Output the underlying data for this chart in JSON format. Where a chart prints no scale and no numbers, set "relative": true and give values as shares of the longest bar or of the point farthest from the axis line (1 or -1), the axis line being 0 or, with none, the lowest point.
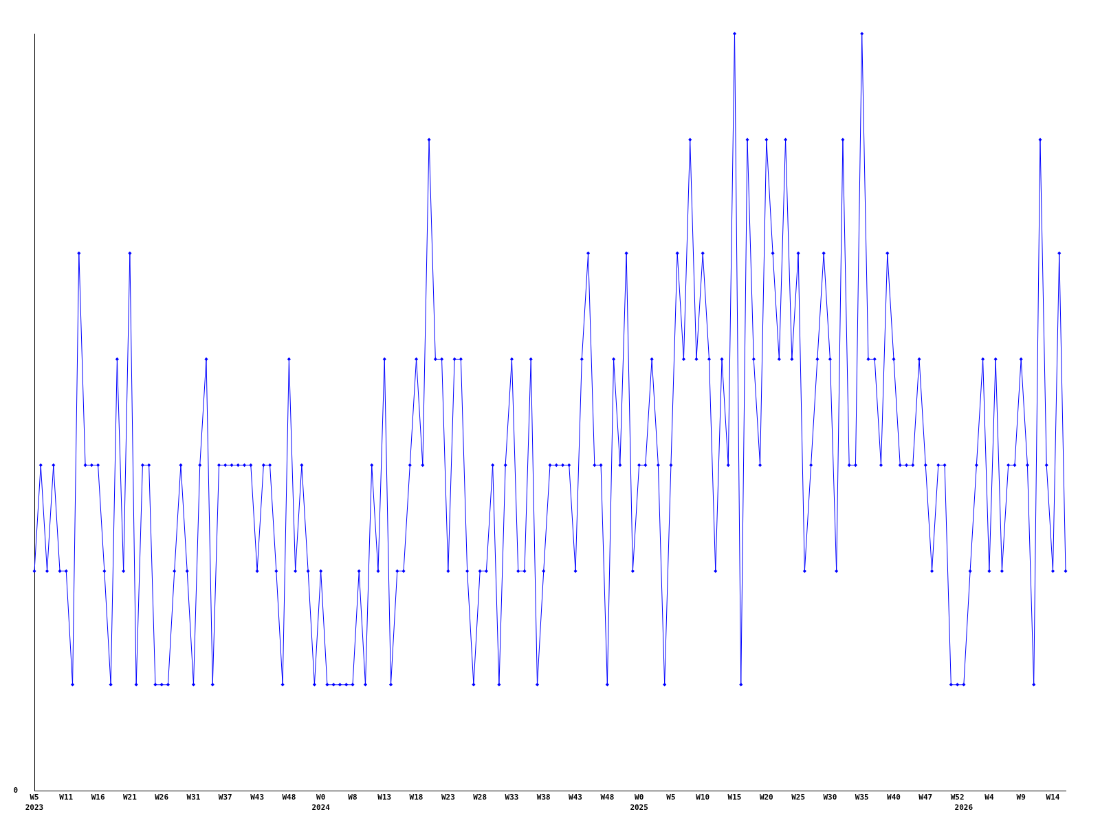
{
  "chart_data": {
    "type": "line",
    "relative": true,
    "marker": "diamond",
    "line_style": "solid",
    "color": "#0000ff",
    "categories": [
      "W5\n2023",
      null,
      null,
      null,
      null,
      "W11",
      null,
      null,
      null,
      null,
      "W16",
      null,
      null,
      null,
      null,
      "W21",
      null,
      null,
      null,
      null,
      "W26",
      null,
      null,
      null,
      null,
      "W31",
      null,
      null,
      null,
      null,
      "W37",
      null,
      null,
      null,
      null,
      "W43",
      null,
      null,
      null,
      null,
      "W48",
      null,
      null,
      null,
      null,
      "W0\n2024",
      null,
      null,
      null,
      null,
      "W8",
      null,
      null,
      null,
      null,
      "W13",
      null,
      null,
      null,
      null,
      "W18",
      null,
      null,
      null,
      null,
      "W23",
      null,
      null,
      null,
      null,
      "W28",
      null,
      null,
      null,
      null,
      "W33",
      null,
      null,
      null,
      null,
      "W38",
      null,
      null,
      null,
      null,
      "W43",
      null,
      null,
      null,
      null,
      "W48",
      null,
      null,
      null,
      null,
      "W0\n2025",
      null,
      null,
      null,
      null,
      "W5",
      null,
      null,
      null,
      null,
      "W10",
      null,
      null,
      null,
      null,
      "W15",
      null,
      null,
      null,
      null,
      "W20",
      null,
      null,
      null,
      null,
      "W25",
      null,
      null,
      null,
      null,
      "W30",
      null,
      null,
      null,
      null,
      "W35",
      null,
      null,
      null,
      null,
      "W40",
      null,
      null,
      null,
      null,
      "W47",
      null,
      null,
      null,
      null,
      "W52",
      "\n2026",
      null,
      null,
      null,
      "W4",
      null,
      null,
      null,
      null,
      "W9",
      null,
      null,
      null,
      null,
      "W14",
      null,
      null
    ],
    "values": [
      0.29,
      0.43,
      0.29,
      0.43,
      0.29,
      0.29,
      0.14,
      0.71,
      0.43,
      0.43,
      0.43,
      0.29,
      0.14,
      0.57,
      0.29,
      0.71,
      0.14,
      0.43,
      0.43,
      0.14,
      0.14,
      0.14,
      0.29,
      0.43,
      0.29,
      0.14,
      0.43,
      0.57,
      0.14,
      0.43,
      0.43,
      0.43,
      0.43,
      0.43,
      0.43,
      0.29,
      0.43,
      0.43,
      0.29,
      0.14,
      0.57,
      0.29,
      0.43,
      0.29,
      0.14,
      0.29,
      0.14,
      0.14,
      0.14,
      0.14,
      0.14,
      0.29,
      0.14,
      0.43,
      0.29,
      0.57,
      0.14,
      0.29,
      0.29,
      0.43,
      0.57,
      0.43,
      0.86,
      0.57,
      0.57,
      0.29,
      0.57,
      0.57,
      0.29,
      0.14,
      0.29,
      0.29,
      0.43,
      0.14,
      0.43,
      0.57,
      0.29,
      0.29,
      0.57,
      0.14,
      0.29,
      0.43,
      0.43,
      0.43,
      0.43,
      0.29,
      0.57,
      0.71,
      0.43,
      0.43,
      0.14,
      0.57,
      0.43,
      0.71,
      0.29,
      0.43,
      0.43,
      0.57,
      0.43,
      0.14,
      0.43,
      0.71,
      0.57,
      0.86,
      0.57,
      0.71,
      0.57,
      0.29,
      0.57,
      0.43,
      1,
      0.14,
      0.86,
      0.57,
      0.43,
      0.86,
      0.71,
      0.57,
      0.86,
      0.57,
      0.71,
      0.29,
      0.43,
      0.57,
      0.71,
      0.57,
      0.29,
      0.86,
      0.43,
      0.43,
      1,
      0.57,
      0.57,
      0.43,
      0.71,
      0.57,
      0.43,
      0.43,
      0.43,
      0.57,
      0.43,
      0.29,
      0.43,
      0.43,
      0.14,
      0.14,
      0.14,
      0.29,
      0.43,
      0.57,
      0.29,
      0.57,
      0.29,
      0.43,
      0.43,
      0.57,
      0.43,
      0.14,
      0.86,
      0.43,
      0.29,
      0.71,
      0.29
    ],
    "annotations": [
      "0"
    ]
  }
}
